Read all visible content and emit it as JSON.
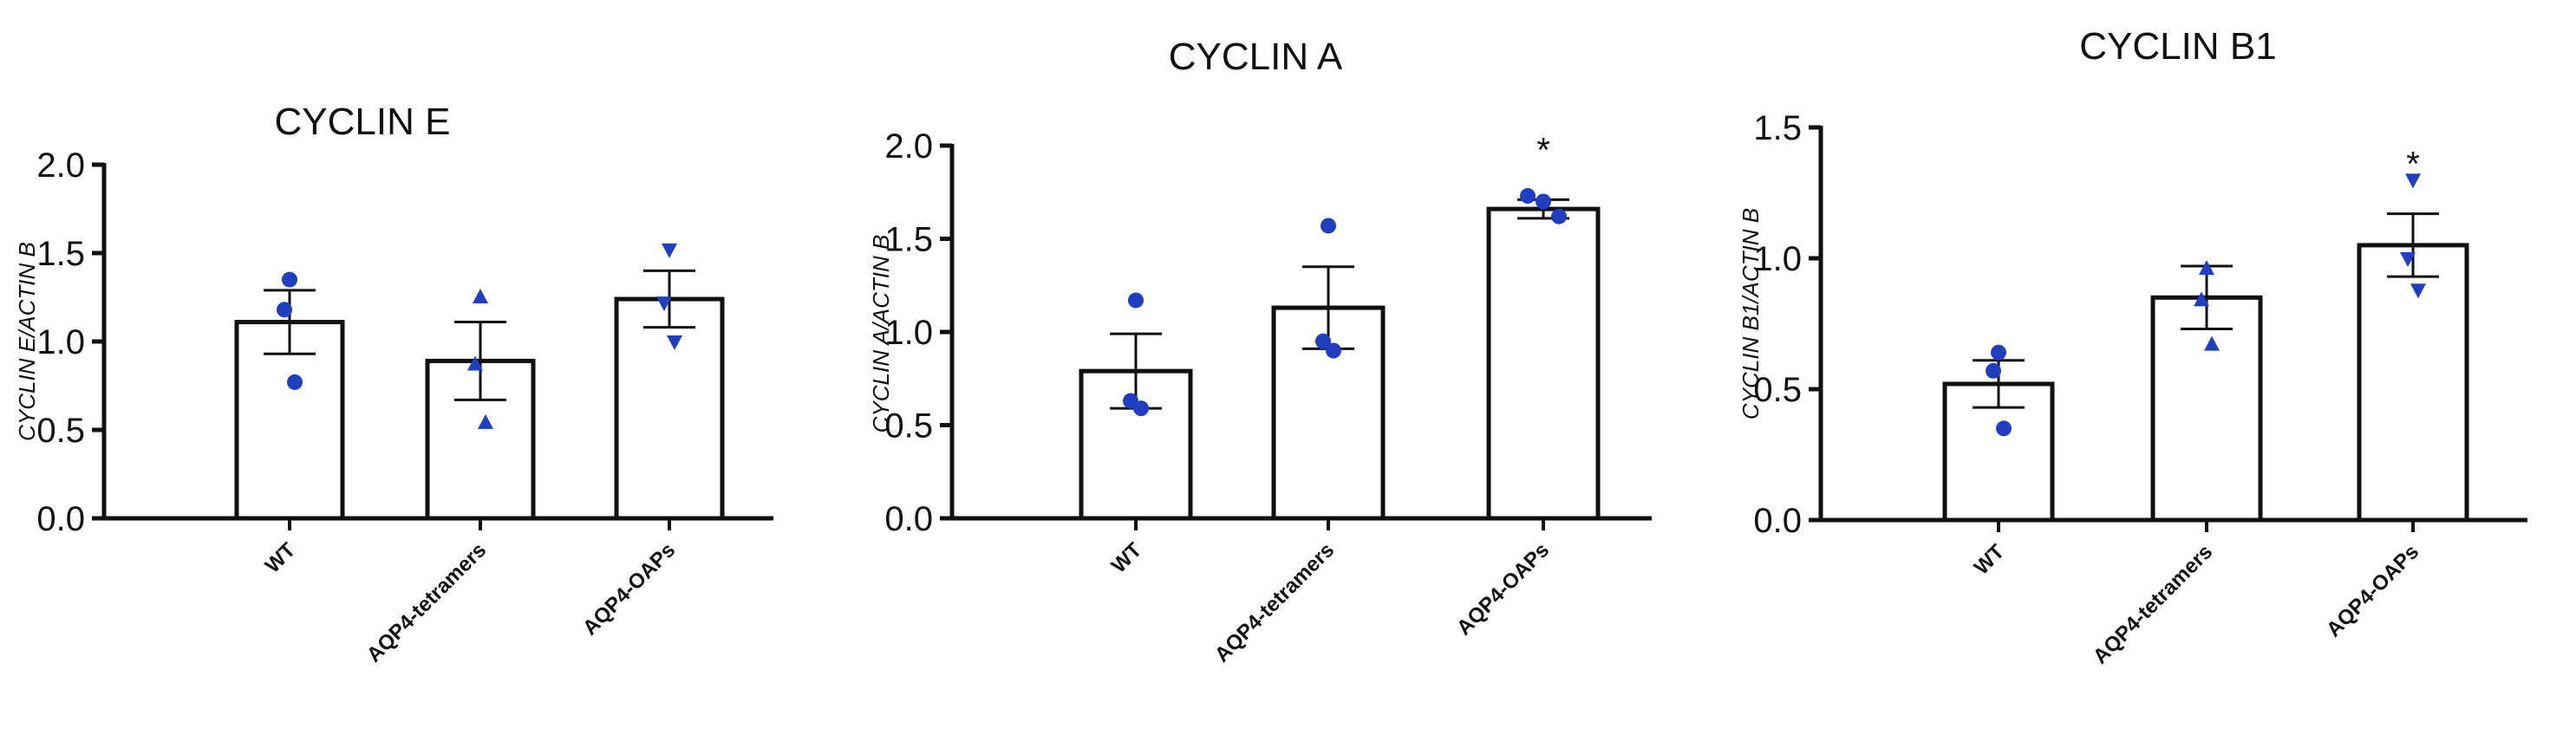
{
  "chart_data": [
    {
      "type": "bar",
      "title": "CYCLIN E",
      "ylabel": "CYCLIN E/ACTIN B",
      "xlabel": "",
      "categories": [
        "WT",
        "AQP4-tetramers",
        "AQP4-OAPs"
      ],
      "yticks": [
        "0.0",
        "0.5",
        "1.0",
        "1.5",
        "2.0"
      ],
      "ylim": [
        0,
        2.0
      ],
      "values": [
        1.11,
        0.89,
        1.24
      ],
      "sem": [
        0.18,
        0.22,
        0.16
      ],
      "points": [
        [
          1.35,
          1.18,
          0.77
        ],
        [
          1.25,
          0.87,
          0.54
        ],
        [
          1.52,
          1.22,
          1.0
        ]
      ],
      "markers": [
        "circle",
        "triangle-up",
        "triangle-down"
      ],
      "significance": [
        "",
        "",
        ""
      ],
      "marker_color": "#1f3fc0",
      "grid": false
    },
    {
      "type": "bar",
      "title": "CYCLIN A",
      "ylabel": "CYCLIN A/ACTIN B",
      "xlabel": "",
      "categories": [
        "WT",
        "AQP4-tetramers",
        "AQP4-OAPs"
      ],
      "yticks": [
        "0.0",
        "0.5",
        "1.0",
        "1.5",
        "2.0"
      ],
      "ylim": [
        0,
        2.0
      ],
      "values": [
        0.79,
        1.13,
        1.66
      ],
      "sem": [
        0.2,
        0.22,
        0.05
      ],
      "points": [
        [
          1.17,
          0.63,
          0.59
        ],
        [
          1.57,
          0.95,
          0.9
        ],
        [
          1.73,
          1.7,
          1.62
        ]
      ],
      "markers": [
        "circle",
        "circle",
        "circle"
      ],
      "significance": [
        "",
        "",
        "*"
      ],
      "marker_color": "#1f3fc0",
      "grid": false
    },
    {
      "type": "bar",
      "title": "CYCLIN B1",
      "ylabel": "CYCLIN B1/ACTIN B",
      "xlabel": "",
      "categories": [
        "WT",
        "AQP4-tetramers",
        "AQP4-OAPs"
      ],
      "yticks": [
        "0.0",
        "0.5",
        "1.0",
        "1.5"
      ],
      "ylim": [
        0,
        1.5
      ],
      "values": [
        0.52,
        0.85,
        1.05
      ],
      "sem": [
        0.09,
        0.12,
        0.12
      ],
      "points": [
        [
          0.64,
          0.57,
          0.35
        ],
        [
          0.96,
          0.84,
          0.67
        ],
        [
          1.3,
          1.0,
          0.88
        ]
      ],
      "markers": [
        "circle",
        "triangle-up",
        "triangle-down"
      ],
      "significance": [
        "",
        "",
        "*"
      ],
      "marker_color": "#1f3fc0",
      "grid": false
    }
  ]
}
